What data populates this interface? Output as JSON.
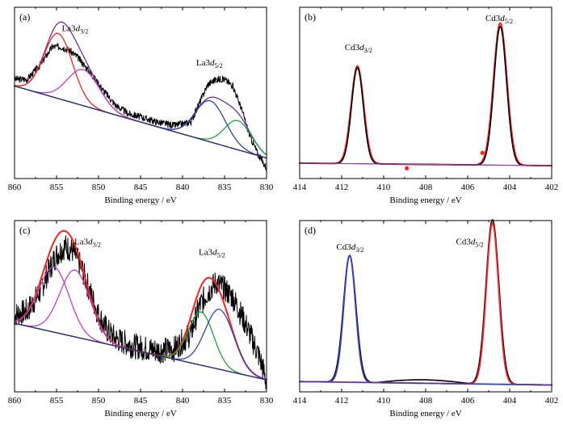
{
  "chart_data": [
    {
      "panel": "(a)",
      "type": "line",
      "xlabel": "Binding energy / eV",
      "xlim": [
        860,
        830
      ],
      "xticks": [
        "860",
        "855",
        "850",
        "845",
        "840",
        "835",
        "830"
      ],
      "ylim": [
        0,
        1
      ],
      "annotations": [
        {
          "base": "La3",
          "italic": "d",
          "sub": "3/2",
          "x": 852.8,
          "y": 0.86
        },
        {
          "base": "La3",
          "italic": "d",
          "sub": "5/2",
          "x": 836.8,
          "y": 0.66
        }
      ],
      "series": [
        {
          "role": "raw",
          "color": "#000000",
          "noise": 0.02,
          "seed": 3,
          "x": [
            860,
            858.5,
            857,
            855.5,
            854.5,
            853.5,
            852.5,
            851,
            849.5,
            848,
            846.5,
            845,
            843,
            841,
            839,
            838,
            837,
            836,
            835,
            834,
            833,
            832,
            831,
            830
          ],
          "y": [
            0.58,
            0.58,
            0.66,
            0.77,
            0.77,
            0.75,
            0.71,
            0.62,
            0.52,
            0.43,
            0.38,
            0.36,
            0.33,
            0.31,
            0.33,
            0.44,
            0.55,
            0.58,
            0.58,
            0.54,
            0.41,
            0.25,
            0.14,
            0.06
          ]
        },
        {
          "role": "fit-envelope",
          "color": "#7030a0",
          "gauss": [
            {
              "c": 854.8,
              "a": 0.38,
              "w": 1.7
            },
            {
              "c": 851.8,
              "a": 0.21,
              "w": 1.9
            },
            {
              "c": 836.7,
              "a": 0.24,
              "w": 1.8
            },
            {
              "c": 833.4,
              "a": 0.17,
              "w": 1.6
            }
          ]
        },
        {
          "role": "peak-1",
          "color": "#ff2020",
          "gauss": [
            {
              "c": 854.8,
              "a": 0.38,
              "w": 1.7
            }
          ]
        },
        {
          "role": "peak-2",
          "color": "#c040c0",
          "gauss": [
            {
              "c": 851.8,
              "a": 0.21,
              "w": 1.9
            }
          ]
        },
        {
          "role": "peak-3",
          "color": "#3040c0",
          "gauss": [
            {
              "c": 836.7,
              "a": 0.24,
              "w": 1.8
            }
          ]
        },
        {
          "role": "peak-4",
          "color": "#20a040",
          "gauss": [
            {
              "c": 833.4,
              "a": 0.17,
              "w": 1.6
            }
          ]
        },
        {
          "role": "baseline",
          "color": "#303070",
          "baseline": [
            0.54,
            0.12
          ]
        }
      ]
    },
    {
      "panel": "(b)",
      "type": "line",
      "xlabel": "Binding energy / eV",
      "xlim": [
        414,
        402
      ],
      "xticks": [
        "414",
        "412",
        "410",
        "408",
        "406",
        "404",
        "402"
      ],
      "ylim": [
        0,
        1
      ],
      "annotations": [
        {
          "base": "Cd3",
          "italic": "d",
          "sub": "3/2",
          "x": 411.2,
          "y": 0.75
        },
        {
          "base": "Cd3",
          "italic": "d",
          "sub": "5/2",
          "x": 404.5,
          "y": 0.92
        }
      ],
      "series": [
        {
          "role": "fit",
          "color": "#ff2020",
          "width": 2,
          "gauss": [
            {
              "c": 411.25,
              "a": 0.57,
              "w": 0.3
            },
            {
              "c": 404.45,
              "a": 0.83,
              "w": 0.32
            }
          ],
          "markers": [
            {
              "x": 408.9,
              "y": 0.06
            },
            {
              "x": 405.3,
              "y": 0.15
            }
          ]
        },
        {
          "role": "raw",
          "color": "#000000",
          "width": 1.6,
          "gauss": [
            {
              "c": 411.25,
              "a": 0.56,
              "w": 0.28
            },
            {
              "c": 404.45,
              "a": 0.81,
              "w": 0.3
            }
          ]
        },
        {
          "role": "baseline",
          "color": "#9040a0",
          "baseline": [
            0.09,
            0.075
          ]
        }
      ]
    },
    {
      "panel": "(c)",
      "type": "line",
      "xlabel": "Binding energy / eV",
      "xlim": [
        860,
        830
      ],
      "xticks": [
        "860",
        "855",
        "850",
        "845",
        "840",
        "835",
        "830"
      ],
      "ylim": [
        0,
        1
      ],
      "annotations": [
        {
          "base": "La3",
          "italic": "d",
          "sub": "3/2",
          "x": 851.3,
          "y": 0.86
        },
        {
          "base": "La3",
          "italic": "d",
          "sub": "5/2",
          "x": 836.5,
          "y": 0.8
        }
      ],
      "series": [
        {
          "role": "raw",
          "color": "#000000",
          "noise": 0.075,
          "seed": 7,
          "x": [
            860,
            858.5,
            857,
            856,
            855,
            854,
            853,
            852,
            851,
            850,
            849,
            848,
            847,
            846,
            845,
            843,
            841,
            839,
            838,
            837,
            836,
            835,
            834,
            833,
            832,
            831,
            830.5,
            830
          ],
          "y": [
            0.45,
            0.47,
            0.58,
            0.7,
            0.8,
            0.85,
            0.82,
            0.72,
            0.58,
            0.45,
            0.36,
            0.31,
            0.29,
            0.27,
            0.26,
            0.24,
            0.25,
            0.34,
            0.5,
            0.58,
            0.64,
            0.6,
            0.55,
            0.45,
            0.34,
            0.22,
            0.15,
            0.05
          ]
        },
        {
          "role": "fit-envelope",
          "color": "#ff2020",
          "width": 2,
          "gauss": [
            {
              "c": 855.3,
              "a": 0.38,
              "w": 1.8
            },
            {
              "c": 852.8,
              "a": 0.39,
              "w": 1.8
            },
            {
              "c": 837.8,
              "a": 0.31,
              "w": 1.5
            },
            {
              "c": 835.6,
              "a": 0.35,
              "w": 1.7
            }
          ]
        },
        {
          "role": "peak-1",
          "color": "#c040c0",
          "gauss": [
            {
              "c": 855.3,
              "a": 0.38,
              "w": 1.8
            }
          ]
        },
        {
          "role": "peak-2",
          "color": "#c040c0",
          "gauss": [
            {
              "c": 852.8,
              "a": 0.39,
              "w": 1.8
            }
          ]
        },
        {
          "role": "peak-3",
          "color": "#20a040",
          "gauss": [
            {
              "c": 837.8,
              "a": 0.31,
              "w": 1.5
            }
          ]
        },
        {
          "role": "peak-4",
          "color": "#3040c0",
          "gauss": [
            {
              "c": 835.6,
              "a": 0.35,
              "w": 1.7
            }
          ]
        },
        {
          "role": "baseline",
          "color": "#303070",
          "baseline": [
            0.4,
            0.07
          ]
        }
      ]
    },
    {
      "panel": "(d)",
      "type": "line",
      "xlabel": "Binding energy / eV",
      "xlim": [
        414,
        402
      ],
      "xticks": [
        "414",
        "412",
        "410",
        "408",
        "406",
        "404",
        "402"
      ],
      "ylim": [
        0,
        1
      ],
      "annotations": [
        {
          "base": "Cd3",
          "italic": "d",
          "sub": "3/2",
          "x": 411.6,
          "y": 0.83
        },
        {
          "base": "Cd3",
          "italic": "d",
          "sub": "5/2",
          "x": 405.9,
          "y": 0.86
        }
      ],
      "series": [
        {
          "role": "raw",
          "color": "#000000",
          "width": 1.6,
          "gauss": [
            {
              "c": 411.62,
              "a": 0.74,
              "w": 0.3
            },
            {
              "c": 404.82,
              "a": 0.96,
              "w": 0.31
            }
          ],
          "baseline": [
            0.06,
            0.04
          ],
          "bump": {
            "x1": 410.4,
            "x2": 405.8,
            "a": 0.02
          }
        },
        {
          "role": "fit-peak-1",
          "color": "#3040c0",
          "width": 1.8,
          "gauss": [
            {
              "c": 411.62,
              "a": 0.74,
              "w": 0.28
            }
          ],
          "baseline": [
            0.06,
            0.04
          ]
        },
        {
          "role": "fit-peak-2",
          "color": "#ff2020",
          "width": 1.8,
          "gauss": [
            {
              "c": 404.82,
              "a": 0.94,
              "w": 0.29
            }
          ],
          "baseline": [
            0.06,
            0.04
          ]
        },
        {
          "role": "baseline",
          "color": "#3040c0",
          "baseline": [
            0.06,
            0.04
          ]
        }
      ]
    }
  ]
}
